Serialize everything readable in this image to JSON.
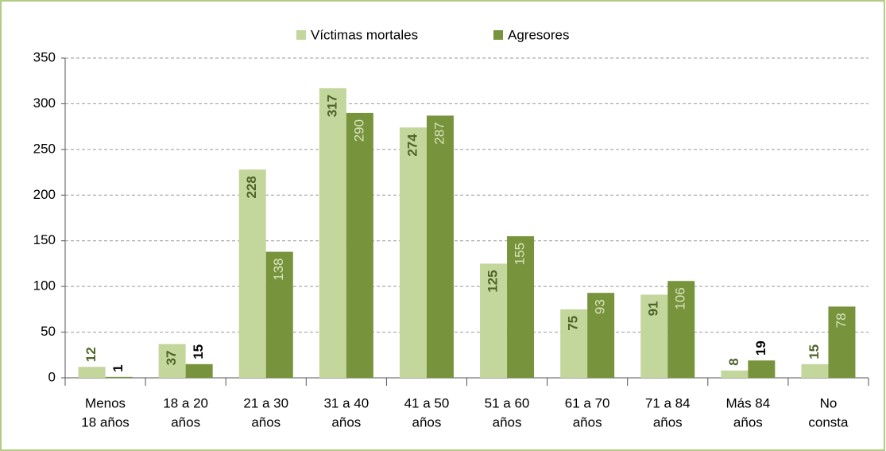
{
  "chart_data": {
    "type": "bar",
    "categories": [
      [
        "Menos",
        "18 años"
      ],
      [
        "18 a 20",
        "años"
      ],
      [
        "21 a 30",
        "años"
      ],
      [
        "31 a 40",
        "años"
      ],
      [
        "41 a 50",
        "años"
      ],
      [
        "51 a 60",
        "años"
      ],
      [
        "61 a 70",
        "años"
      ],
      [
        "71 a 84",
        "años"
      ],
      [
        "Más 84",
        "años"
      ],
      [
        "No",
        "consta"
      ]
    ],
    "series": [
      {
        "name": "Víctimas mortales",
        "color": "#c3d69b",
        "values": [
          12,
          37,
          228,
          317,
          274,
          125,
          75,
          91,
          8,
          15
        ]
      },
      {
        "name": "Agresores",
        "color": "#77933c",
        "values": [
          1,
          15,
          138,
          290,
          287,
          155,
          93,
          106,
          19,
          78
        ]
      }
    ],
    "ylim": [
      0,
      350
    ],
    "yticks": [
      0,
      50,
      100,
      150,
      200,
      250,
      300,
      350
    ],
    "grid": true,
    "legend": "top"
  }
}
